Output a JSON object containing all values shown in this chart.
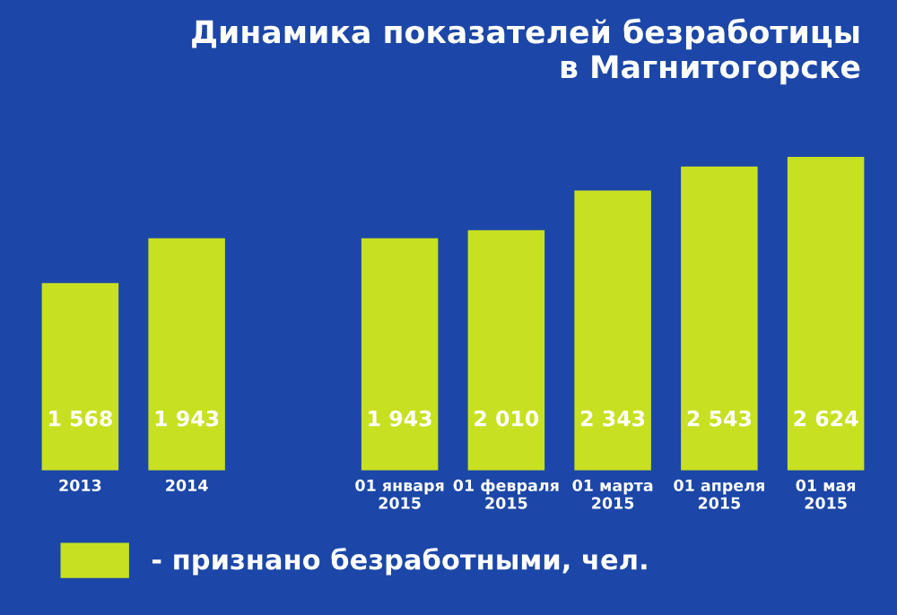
{
  "chart_data": {
    "type": "bar",
    "title": "Динамика показателей безработицы\nв Магнитогорске",
    "categories": [
      "2013",
      "2014",
      null,
      "01 января\n2015",
      "01 февраля\n2015",
      "01 марта\n2015",
      "01 апреля\n2015",
      "01 мая\n2015"
    ],
    "series": [
      {
        "name": "- признано безработными, чел.",
        "color": "#c8e022",
        "values": [
          1568,
          1943,
          null,
          1943,
          2010,
          2343,
          2543,
          2624
        ],
        "value_labels": [
          "1 568",
          "1 943",
          null,
          "1 943",
          "2 010",
          "2 343",
          "2 543",
          "2 624"
        ]
      }
    ],
    "data_labels": true,
    "grid": false,
    "legend": "bottom left"
  }
}
